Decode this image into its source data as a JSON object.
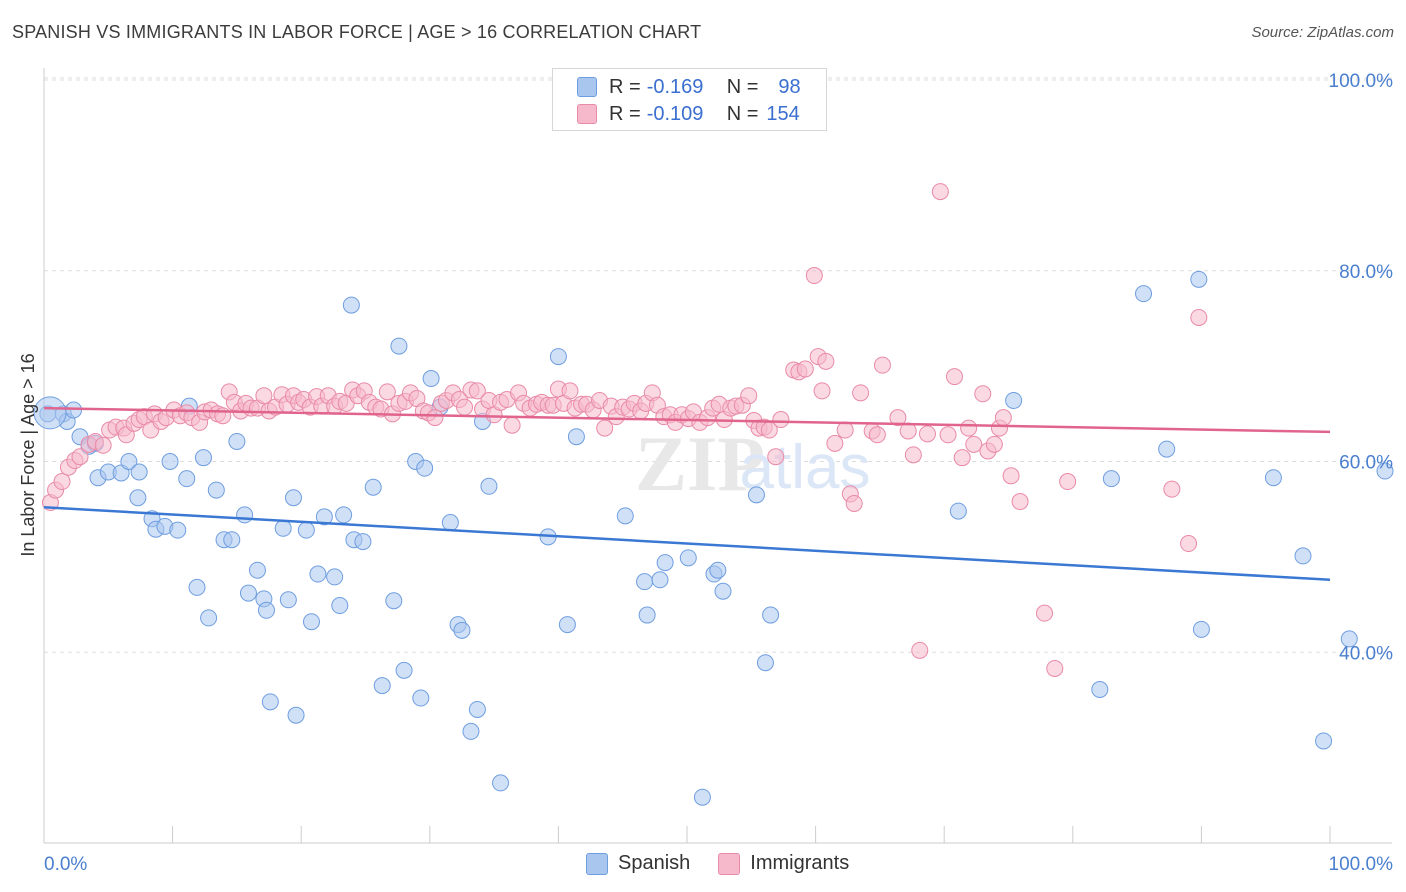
{
  "title": "SPANISH VS IMMIGRANTS IN LABOR FORCE | AGE > 16 CORRELATION CHART",
  "source": "Source: ZipAtlas.com",
  "watermark": "ZIPatlas",
  "legend": {
    "rows": [
      {
        "r_label": "R = ",
        "r_value": "-0.169",
        "n_label": "N = ",
        "n_value": "98",
        "color": "#a9c6ef",
        "stroke": "#6f9ee0"
      },
      {
        "r_label": "R = ",
        "r_value": "-0.109",
        "n_label": "N = ",
        "n_value": "154",
        "color": "#f6b9cc",
        "stroke": "#e98aa8"
      }
    ]
  },
  "bottom_legend": [
    {
      "label": "Spanish",
      "color": "#a9c6ef",
      "stroke": "#6f9ee0"
    },
    {
      "label": "Immigrants",
      "color": "#f6b9cc",
      "stroke": "#e98aa8"
    }
  ],
  "chart_data": {
    "type": "scatter",
    "title": "SPANISH VS IMMIGRANTS IN LABOR FORCE | AGE > 16 CORRELATION CHART",
    "xlabel": "",
    "ylabel": "In Labor Force | Age > 16",
    "xlim": [
      0,
      100
    ],
    "ylim": [
      20,
      100
    ],
    "y_ticks": [
      {
        "value": 40,
        "label": "40.0%"
      },
      {
        "value": 60,
        "label": "60.0%"
      },
      {
        "value": 80,
        "label": "80.0%"
      },
      {
        "value": 100,
        "label": "100.0%"
      }
    ],
    "x_tick_labels": [
      {
        "value": 0,
        "label": "0.0%"
      },
      {
        "value": 100,
        "label": "100.0%"
      }
    ],
    "x_minor_ticks": [
      10,
      20,
      30,
      40,
      50,
      60,
      70,
      80,
      90,
      100
    ],
    "grid": "horizontal dashed",
    "legend_position": "top-center",
    "series": [
      {
        "name": "Spanish",
        "color": "#a9c6ef",
        "stroke": "#6f9ee0",
        "trend": {
          "x": [
            0,
            100
          ],
          "y": [
            55.2,
            47.6
          ],
          "color": "#3a78d4"
        },
        "points": [
          [
            0.3,
            65
          ],
          [
            1.5,
            65
          ],
          [
            1.8,
            64.2
          ],
          [
            2.3,
            65.4
          ],
          [
            2.8,
            62.6
          ],
          [
            3.5,
            61.6
          ],
          [
            4,
            61.9
          ],
          [
            4.2,
            58.3
          ],
          [
            5,
            58.9
          ],
          [
            6,
            58.8
          ],
          [
            6.6,
            60
          ],
          [
            7.4,
            58.9
          ],
          [
            7.3,
            56.2
          ],
          [
            8.4,
            54
          ],
          [
            8.7,
            52.9
          ],
          [
            9.4,
            53.2
          ],
          [
            9.8,
            60
          ],
          [
            10.4,
            52.8
          ],
          [
            11.1,
            58.2
          ],
          [
            11.3,
            65.8
          ],
          [
            11.9,
            46.8
          ],
          [
            12.4,
            60.4
          ],
          [
            12.8,
            43.6
          ],
          [
            13.4,
            57
          ],
          [
            14,
            51.8
          ],
          [
            14.6,
            51.8
          ],
          [
            15,
            62.1
          ],
          [
            15.6,
            54.4
          ],
          [
            15.9,
            46.2
          ],
          [
            16.6,
            48.6
          ],
          [
            17.1,
            45.6
          ],
          [
            17.3,
            44.4
          ],
          [
            17.6,
            34.8
          ],
          [
            18.6,
            53
          ],
          [
            19,
            45.5
          ],
          [
            19.4,
            56.2
          ],
          [
            19.6,
            33.4
          ],
          [
            20.4,
            52.8
          ],
          [
            20.8,
            43.2
          ],
          [
            21.3,
            48.2
          ],
          [
            21.8,
            54.2
          ],
          [
            22.6,
            47.9
          ],
          [
            23,
            44.9
          ],
          [
            23.3,
            54.4
          ],
          [
            23.9,
            76.4
          ],
          [
            24.1,
            51.8
          ],
          [
            24.8,
            51.6
          ],
          [
            25.6,
            57.3
          ],
          [
            26.3,
            36.5
          ],
          [
            27.2,
            45.4
          ],
          [
            27.6,
            72.1
          ],
          [
            28,
            38.1
          ],
          [
            28.9,
            60
          ],
          [
            29.3,
            35.2
          ],
          [
            29.6,
            59.3
          ],
          [
            30.1,
            68.7
          ],
          [
            30.8,
            65.7
          ],
          [
            31.6,
            53.6
          ],
          [
            32.2,
            42.9
          ],
          [
            32.5,
            42.3
          ],
          [
            33.2,
            31.7
          ],
          [
            33.7,
            34
          ],
          [
            34.1,
            64.2
          ],
          [
            34.6,
            57.4
          ],
          [
            35.5,
            26.3
          ],
          [
            39.2,
            52.1
          ],
          [
            40,
            71
          ],
          [
            40.7,
            42.9
          ],
          [
            41.4,
            62.6
          ],
          [
            45.2,
            54.3
          ],
          [
            46.7,
            47.4
          ],
          [
            46.9,
            43.9
          ],
          [
            47.9,
            47.6
          ],
          [
            48.3,
            49.4
          ],
          [
            50.1,
            49.9
          ],
          [
            51.2,
            24.8
          ],
          [
            52.1,
            48.2
          ],
          [
            52.4,
            48.6
          ],
          [
            52.8,
            46.4
          ],
          [
            55.4,
            56.5
          ],
          [
            56.1,
            38.9
          ],
          [
            56.5,
            43.9
          ],
          [
            71.1,
            54.8
          ],
          [
            75.4,
            66.4
          ],
          [
            82.1,
            36.1
          ],
          [
            83,
            58.2
          ],
          [
            85.5,
            77.6
          ],
          [
            87.3,
            61.3
          ],
          [
            89.8,
            79.1
          ],
          [
            90,
            42.4
          ],
          [
            95.6,
            58.3
          ],
          [
            97.9,
            50.1
          ],
          [
            99.5,
            30.7
          ],
          [
            101.5,
            41.4
          ],
          [
            104.6,
            59
          ]
        ]
      },
      {
        "name": "Immigrants",
        "color": "#f6b9cc",
        "stroke": "#e98aa8",
        "trend": {
          "x": [
            0,
            100
          ],
          "y": [
            65.6,
            63.1
          ],
          "color": "#e0648e"
        },
        "points": [
          [
            0.5,
            55.7
          ],
          [
            0.9,
            57
          ],
          [
            1.4,
            57.9
          ],
          [
            1.9,
            59.4
          ],
          [
            2.4,
            60.1
          ],
          [
            2.8,
            60.5
          ],
          [
            3.5,
            61.8
          ],
          [
            4,
            62.1
          ],
          [
            4.6,
            61.7
          ],
          [
            5.1,
            63.3
          ],
          [
            5.6,
            63.6
          ],
          [
            6.2,
            63.5
          ],
          [
            6.4,
            62.8
          ],
          [
            7,
            64
          ],
          [
            7.4,
            64.4
          ],
          [
            7.8,
            64.7
          ],
          [
            8.3,
            63.3
          ],
          [
            8.6,
            65
          ],
          [
            9.1,
            64.2
          ],
          [
            9.5,
            64.6
          ],
          [
            10.1,
            65.4
          ],
          [
            10.6,
            64.8
          ],
          [
            11.1,
            65.1
          ],
          [
            11.5,
            64.6
          ],
          [
            12.1,
            64.1
          ],
          [
            12.5,
            65.2
          ],
          [
            13,
            65.4
          ],
          [
            13.5,
            65
          ],
          [
            13.9,
            64.8
          ],
          [
            14.4,
            67.3
          ],
          [
            14.8,
            66.2
          ],
          [
            15.3,
            65.3
          ],
          [
            15.7,
            66.1
          ],
          [
            16.1,
            65.6
          ],
          [
            16.6,
            65.6
          ],
          [
            17.1,
            66.9
          ],
          [
            17.5,
            65.3
          ],
          [
            18,
            65.7
          ],
          [
            18.5,
            67
          ],
          [
            18.9,
            66
          ],
          [
            19.4,
            66.9
          ],
          [
            19.8,
            66.2
          ],
          [
            20.2,
            66.5
          ],
          [
            20.7,
            65.7
          ],
          [
            21.2,
            66.8
          ],
          [
            21.6,
            65.8
          ],
          [
            22.1,
            66.9
          ],
          [
            22.6,
            65.8
          ],
          [
            23,
            66.3
          ],
          [
            23.5,
            66.1
          ],
          [
            24,
            67.5
          ],
          [
            24.4,
            66.9
          ],
          [
            24.9,
            67.4
          ],
          [
            25.3,
            66.2
          ],
          [
            25.8,
            65.7
          ],
          [
            26.2,
            65.5
          ],
          [
            26.7,
            67.3
          ],
          [
            27.1,
            65
          ],
          [
            27.6,
            66.1
          ],
          [
            28.1,
            66.3
          ],
          [
            28.5,
            67.2
          ],
          [
            29,
            66.6
          ],
          [
            29.5,
            65.3
          ],
          [
            29.9,
            65.1
          ],
          [
            30.4,
            64.6
          ],
          [
            30.9,
            66.1
          ],
          [
            31.3,
            66.4
          ],
          [
            31.8,
            67.2
          ],
          [
            32.3,
            66.5
          ],
          [
            32.7,
            65.7
          ],
          [
            33.2,
            67.5
          ],
          [
            33.7,
            67.4
          ],
          [
            34.1,
            65.5
          ],
          [
            34.6,
            66.4
          ],
          [
            35,
            64.9
          ],
          [
            35.5,
            66.2
          ],
          [
            36,
            66.5
          ],
          [
            36.4,
            63.8
          ],
          [
            36.9,
            67.2
          ],
          [
            37.3,
            66.1
          ],
          [
            37.8,
            65.6
          ],
          [
            38.3,
            66
          ],
          [
            38.7,
            66.2
          ],
          [
            39.2,
            65.9
          ],
          [
            39.6,
            65.9
          ],
          [
            40,
            67.6
          ],
          [
            40.4,
            66.1
          ],
          [
            40.9,
            67.4
          ],
          [
            41.3,
            65.6
          ],
          [
            41.8,
            66
          ],
          [
            42.2,
            66
          ],
          [
            42.7,
            65.4
          ],
          [
            43.2,
            66.4
          ],
          [
            43.6,
            63.5
          ],
          [
            44.1,
            65.8
          ],
          [
            44.5,
            64.7
          ],
          [
            45,
            65.7
          ],
          [
            45.5,
            65.5
          ],
          [
            45.9,
            66.1
          ],
          [
            46.4,
            65.3
          ],
          [
            46.8,
            66.1
          ],
          [
            47.3,
            67.2
          ],
          [
            47.7,
            65.9
          ],
          [
            48.2,
            64.7
          ],
          [
            48.7,
            64.9
          ],
          [
            49.1,
            64.1
          ],
          [
            49.6,
            64.9
          ],
          [
            50.1,
            64.5
          ],
          [
            50.5,
            65.2
          ],
          [
            51,
            64.1
          ],
          [
            51.6,
            64.6
          ],
          [
            52,
            65.6
          ],
          [
            52.5,
            66
          ],
          [
            52.9,
            64.4
          ],
          [
            53.4,
            65.6
          ],
          [
            53.8,
            65.8
          ],
          [
            54.3,
            65.9
          ],
          [
            54.8,
            66.9
          ],
          [
            55.2,
            64.3
          ],
          [
            55.6,
            63.5
          ],
          [
            56,
            63.6
          ],
          [
            56.4,
            63.3
          ],
          [
            56.9,
            60.5
          ],
          [
            57.3,
            64.4
          ],
          [
            58.3,
            69.6
          ],
          [
            58.7,
            69.4
          ],
          [
            59.2,
            69.7
          ],
          [
            59.9,
            79.5
          ],
          [
            60.2,
            71
          ],
          [
            60.5,
            67.4
          ],
          [
            60.8,
            70.5
          ],
          [
            61.5,
            61.9
          ],
          [
            62.3,
            63.3
          ],
          [
            62.7,
            56.6
          ],
          [
            63,
            55.6
          ],
          [
            63.5,
            67.2
          ],
          [
            64.4,
            63.2
          ],
          [
            64.8,
            62.8
          ],
          [
            65.2,
            70.1
          ],
          [
            66.4,
            64.6
          ],
          [
            67.2,
            63.2
          ],
          [
            67.6,
            60.7
          ],
          [
            68.7,
            62.9
          ],
          [
            69.7,
            88.3
          ],
          [
            70.3,
            62.8
          ],
          [
            70.8,
            68.9
          ],
          [
            71.4,
            60.4
          ],
          [
            71.9,
            63.5
          ],
          [
            72.3,
            61.8
          ],
          [
            73,
            67.1
          ],
          [
            73.4,
            61.1
          ],
          [
            73.9,
            61.8
          ],
          [
            74.3,
            63.5
          ],
          [
            74.6,
            64.6
          ],
          [
            75.2,
            58.5
          ],
          [
            75.9,
            55.8
          ],
          [
            77.8,
            44.1
          ],
          [
            78.6,
            38.3
          ],
          [
            79.6,
            57.9
          ],
          [
            87.7,
            57.1
          ],
          [
            89,
            51.4
          ],
          [
            89.8,
            75.1
          ],
          [
            68.1,
            40.2
          ]
        ]
      }
    ]
  }
}
